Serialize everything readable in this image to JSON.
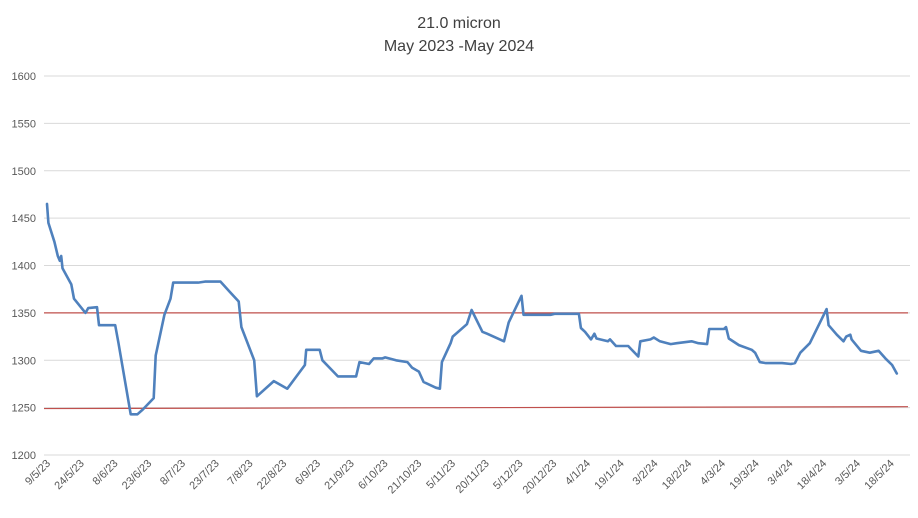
{
  "chart_data": {
    "type": "line",
    "title": "21.0 micron",
    "subtitle": "May 2023 -May 2024",
    "xlabel": "",
    "ylabel": "",
    "ylim": [
      1200,
      1600
    ],
    "yticks": [
      1200,
      1250,
      1300,
      1350,
      1400,
      1450,
      1500,
      1550,
      1600
    ],
    "grid": true,
    "legend": "none",
    "x_tick_labels": [
      "9/5/23",
      "24/5/23",
      "8/6/23",
      "23/6/23",
      "8/7/23",
      "23/7/23",
      "7/8/23",
      "22/8/23",
      "6/9/23",
      "21/9/23",
      "6/10/23",
      "21/10/23",
      "5/11/23",
      "20/11/23",
      "5/12/23",
      "20/12/23",
      "4/1/24",
      "19/1/24",
      "3/2/24",
      "18/2/24",
      "4/3/24",
      "19/3/24",
      "3/4/24",
      "18/4/24",
      "3/5/24",
      "18/5/24"
    ],
    "series": [
      {
        "color": "#4f81bd",
        "points": [
          [
            0,
            1465
          ],
          [
            0.2,
            1445
          ],
          [
            1.1,
            1425
          ],
          [
            1.6,
            1410
          ],
          [
            1.9,
            1405
          ],
          [
            2.1,
            1410
          ],
          [
            2.3,
            1397
          ],
          [
            3.6,
            1380
          ],
          [
            4.0,
            1365
          ],
          [
            5.7,
            1350
          ],
          [
            6.1,
            1355
          ],
          [
            7.4,
            1356
          ],
          [
            7.7,
            1337
          ],
          [
            10.1,
            1337
          ],
          [
            10.6,
            1318
          ],
          [
            12.4,
            1243
          ],
          [
            13.4,
            1243
          ],
          [
            14.2,
            1248
          ],
          [
            15.8,
            1260
          ],
          [
            16.1,
            1305
          ],
          [
            17.4,
            1348
          ],
          [
            18.3,
            1365
          ],
          [
            18.7,
            1382
          ],
          [
            20.9,
            1382
          ],
          [
            22.4,
            1382
          ],
          [
            23.4,
            1383
          ],
          [
            25.7,
            1383
          ],
          [
            27.1,
            1372
          ],
          [
            28.4,
            1362
          ],
          [
            28.8,
            1335
          ],
          [
            30.7,
            1300
          ],
          [
            31.1,
            1262
          ],
          [
            33.6,
            1278
          ],
          [
            35.6,
            1270
          ],
          [
            38.2,
            1295
          ],
          [
            38.4,
            1311
          ],
          [
            40.4,
            1311
          ],
          [
            40.8,
            1300
          ],
          [
            43.1,
            1283
          ],
          [
            45.8,
            1283
          ],
          [
            46.3,
            1298
          ],
          [
            47.7,
            1296
          ],
          [
            48.4,
            1302
          ],
          [
            49.7,
            1302
          ],
          [
            50.1,
            1303
          ],
          [
            51.7,
            1300
          ],
          [
            53.4,
            1298
          ],
          [
            54.1,
            1292
          ],
          [
            55.1,
            1288
          ],
          [
            55.8,
            1277
          ],
          [
            57.6,
            1271
          ],
          [
            58.2,
            1270
          ],
          [
            58.5,
            1298
          ],
          [
            59.8,
            1318
          ],
          [
            60.1,
            1325
          ],
          [
            62.2,
            1338
          ],
          [
            62.9,
            1353
          ],
          [
            64.5,
            1330
          ],
          [
            65.2,
            1328
          ],
          [
            67.7,
            1320
          ],
          [
            68.4,
            1340
          ],
          [
            70.3,
            1368
          ],
          [
            70.6,
            1348
          ],
          [
            74.6,
            1348
          ],
          [
            75.2,
            1349
          ],
          [
            78.8,
            1349
          ],
          [
            79.1,
            1334
          ],
          [
            79.7,
            1330
          ],
          [
            80.6,
            1322
          ],
          [
            81.1,
            1328
          ],
          [
            81.4,
            1323
          ],
          [
            83.1,
            1320
          ],
          [
            83.4,
            1322
          ],
          [
            84.3,
            1315
          ],
          [
            86.1,
            1315
          ],
          [
            86.5,
            1312
          ],
          [
            87.6,
            1304
          ],
          [
            87.9,
            1320
          ],
          [
            89.4,
            1322
          ],
          [
            89.9,
            1324
          ],
          [
            90.8,
            1320
          ],
          [
            92.4,
            1317
          ],
          [
            93.3,
            1318
          ],
          [
            95.5,
            1320
          ],
          [
            96.5,
            1318
          ],
          [
            97.8,
            1317
          ],
          [
            98.1,
            1333
          ],
          [
            100.3,
            1333
          ],
          [
            100.6,
            1335
          ],
          [
            101.0,
            1323
          ],
          [
            102.5,
            1316
          ],
          [
            104.4,
            1311
          ],
          [
            104.9,
            1308
          ],
          [
            105.6,
            1298
          ],
          [
            106.5,
            1297
          ],
          [
            108.9,
            1297
          ],
          [
            110.2,
            1296
          ],
          [
            110.8,
            1297
          ],
          [
            111.6,
            1308
          ],
          [
            113.0,
            1318
          ],
          [
            115.5,
            1354
          ],
          [
            115.8,
            1337
          ],
          [
            117.0,
            1327
          ],
          [
            118.0,
            1320
          ],
          [
            118.4,
            1325
          ],
          [
            119.0,
            1327
          ],
          [
            119.2,
            1322
          ],
          [
            120.6,
            1310
          ],
          [
            121.9,
            1308
          ],
          [
            123.2,
            1310
          ],
          [
            124.2,
            1302
          ],
          [
            125.2,
            1295
          ],
          [
            125.9,
            1286
          ]
        ]
      }
    ],
    "reference_lines": [
      {
        "color": "#c0504d",
        "from": [
          0,
          1350
        ],
        "to": [
          127,
          1350
        ]
      },
      {
        "color": "#c0504d",
        "from": [
          0,
          1249
        ],
        "to": [
          127,
          1251
        ]
      }
    ]
  }
}
